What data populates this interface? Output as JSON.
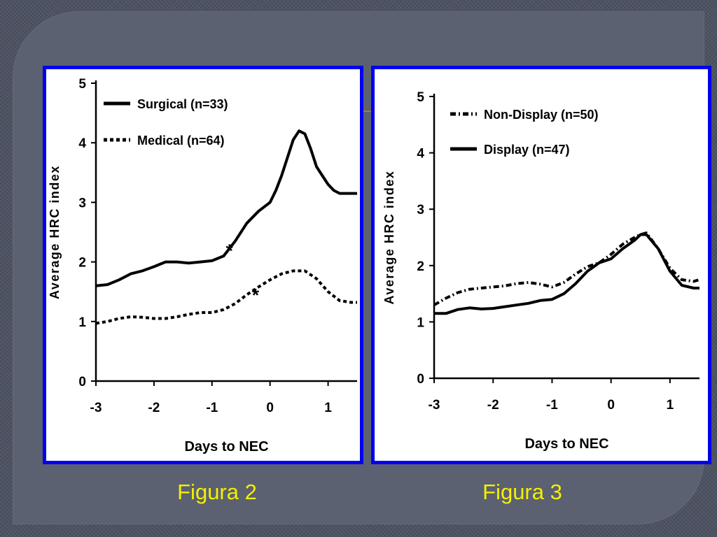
{
  "captions": {
    "fig2": "Figura 2",
    "fig3": "Figura 3"
  },
  "colors": {
    "frame": "#0000ee",
    "caption": "#f4f000",
    "line": "#000000"
  },
  "chart_data": [
    {
      "type": "line",
      "xlabel": "Days to NEC",
      "ylabel": "Average HRC index",
      "xlim": [
        -3,
        1.5
      ],
      "ylim": [
        0,
        5
      ],
      "xticks": [
        -3,
        -2,
        -1,
        0,
        1
      ],
      "yticks": [
        0,
        1,
        2,
        3,
        4,
        5
      ],
      "legend_position": "top-left",
      "series": [
        {
          "name": "Surgical (n=33)",
          "style": "solid",
          "x": [
            -3,
            -2.8,
            -2.6,
            -2.4,
            -2.2,
            -2.0,
            -1.8,
            -1.6,
            -1.4,
            -1.2,
            -1.0,
            -0.8,
            -0.6,
            -0.4,
            -0.2,
            0.0,
            0.1,
            0.2,
            0.3,
            0.4,
            0.5,
            0.6,
            0.7,
            0.8,
            0.9,
            1.0,
            1.1,
            1.2,
            1.3,
            1.4,
            1.5
          ],
          "y": [
            1.6,
            1.62,
            1.7,
            1.8,
            1.85,
            1.92,
            2.0,
            2.0,
            1.98,
            2.0,
            2.02,
            2.1,
            2.35,
            2.65,
            2.85,
            3.0,
            3.2,
            3.45,
            3.75,
            4.05,
            4.2,
            4.15,
            3.9,
            3.6,
            3.45,
            3.3,
            3.2,
            3.15,
            3.15,
            3.15,
            3.15
          ]
        },
        {
          "name": "Medical (n=64)",
          "style": "dotted",
          "x": [
            -3,
            -2.8,
            -2.6,
            -2.4,
            -2.2,
            -2.0,
            -1.8,
            -1.6,
            -1.4,
            -1.2,
            -1.0,
            -0.8,
            -0.6,
            -0.4,
            -0.2,
            0.0,
            0.2,
            0.4,
            0.6,
            0.8,
            1.0,
            1.2,
            1.4,
            1.5
          ],
          "y": [
            0.97,
            1.0,
            1.05,
            1.08,
            1.07,
            1.05,
            1.05,
            1.08,
            1.12,
            1.15,
            1.15,
            1.2,
            1.3,
            1.45,
            1.58,
            1.7,
            1.8,
            1.85,
            1.85,
            1.72,
            1.5,
            1.35,
            1.32,
            1.32
          ]
        }
      ],
      "annotations": [
        {
          "text": "*",
          "x": -0.7,
          "y": 2.25
        },
        {
          "text": "*",
          "x": -0.25,
          "y": 1.5
        }
      ]
    },
    {
      "type": "line",
      "xlabel": "Days to NEC",
      "ylabel": "Average HRC index",
      "xlim": [
        -3,
        1.5
      ],
      "ylim": [
        0,
        5
      ],
      "xticks": [
        -3,
        -2,
        -1,
        0,
        1
      ],
      "yticks": [
        0,
        1,
        2,
        3,
        4,
        5
      ],
      "legend_position": "top-left",
      "series": [
        {
          "name": "Non-Display (n=50)",
          "style": "dashdot",
          "x": [
            -3,
            -2.8,
            -2.6,
            -2.4,
            -2.2,
            -2.0,
            -1.8,
            -1.6,
            -1.4,
            -1.2,
            -1.0,
            -0.8,
            -0.6,
            -0.4,
            -0.2,
            0.0,
            0.2,
            0.4,
            0.5,
            0.6,
            0.8,
            1.0,
            1.2,
            1.4,
            1.5
          ],
          "y": [
            1.3,
            1.42,
            1.52,
            1.58,
            1.6,
            1.62,
            1.64,
            1.68,
            1.7,
            1.67,
            1.62,
            1.7,
            1.85,
            1.98,
            2.05,
            2.2,
            2.38,
            2.5,
            2.55,
            2.58,
            2.3,
            1.95,
            1.75,
            1.72,
            1.75
          ]
        },
        {
          "name": "Display (n=47)",
          "style": "solid",
          "x": [
            -3,
            -2.8,
            -2.6,
            -2.4,
            -2.2,
            -2.0,
            -1.8,
            -1.6,
            -1.4,
            -1.2,
            -1.0,
            -0.8,
            -0.6,
            -0.4,
            -0.2,
            0.0,
            0.2,
            0.4,
            0.5,
            0.6,
            0.8,
            1.0,
            1.2,
            1.4,
            1.5
          ],
          "y": [
            1.15,
            1.15,
            1.22,
            1.25,
            1.23,
            1.24,
            1.27,
            1.3,
            1.33,
            1.38,
            1.4,
            1.5,
            1.68,
            1.9,
            2.05,
            2.12,
            2.3,
            2.45,
            2.55,
            2.55,
            2.3,
            1.9,
            1.65,
            1.6,
            1.6
          ]
        }
      ],
      "annotations": []
    }
  ]
}
